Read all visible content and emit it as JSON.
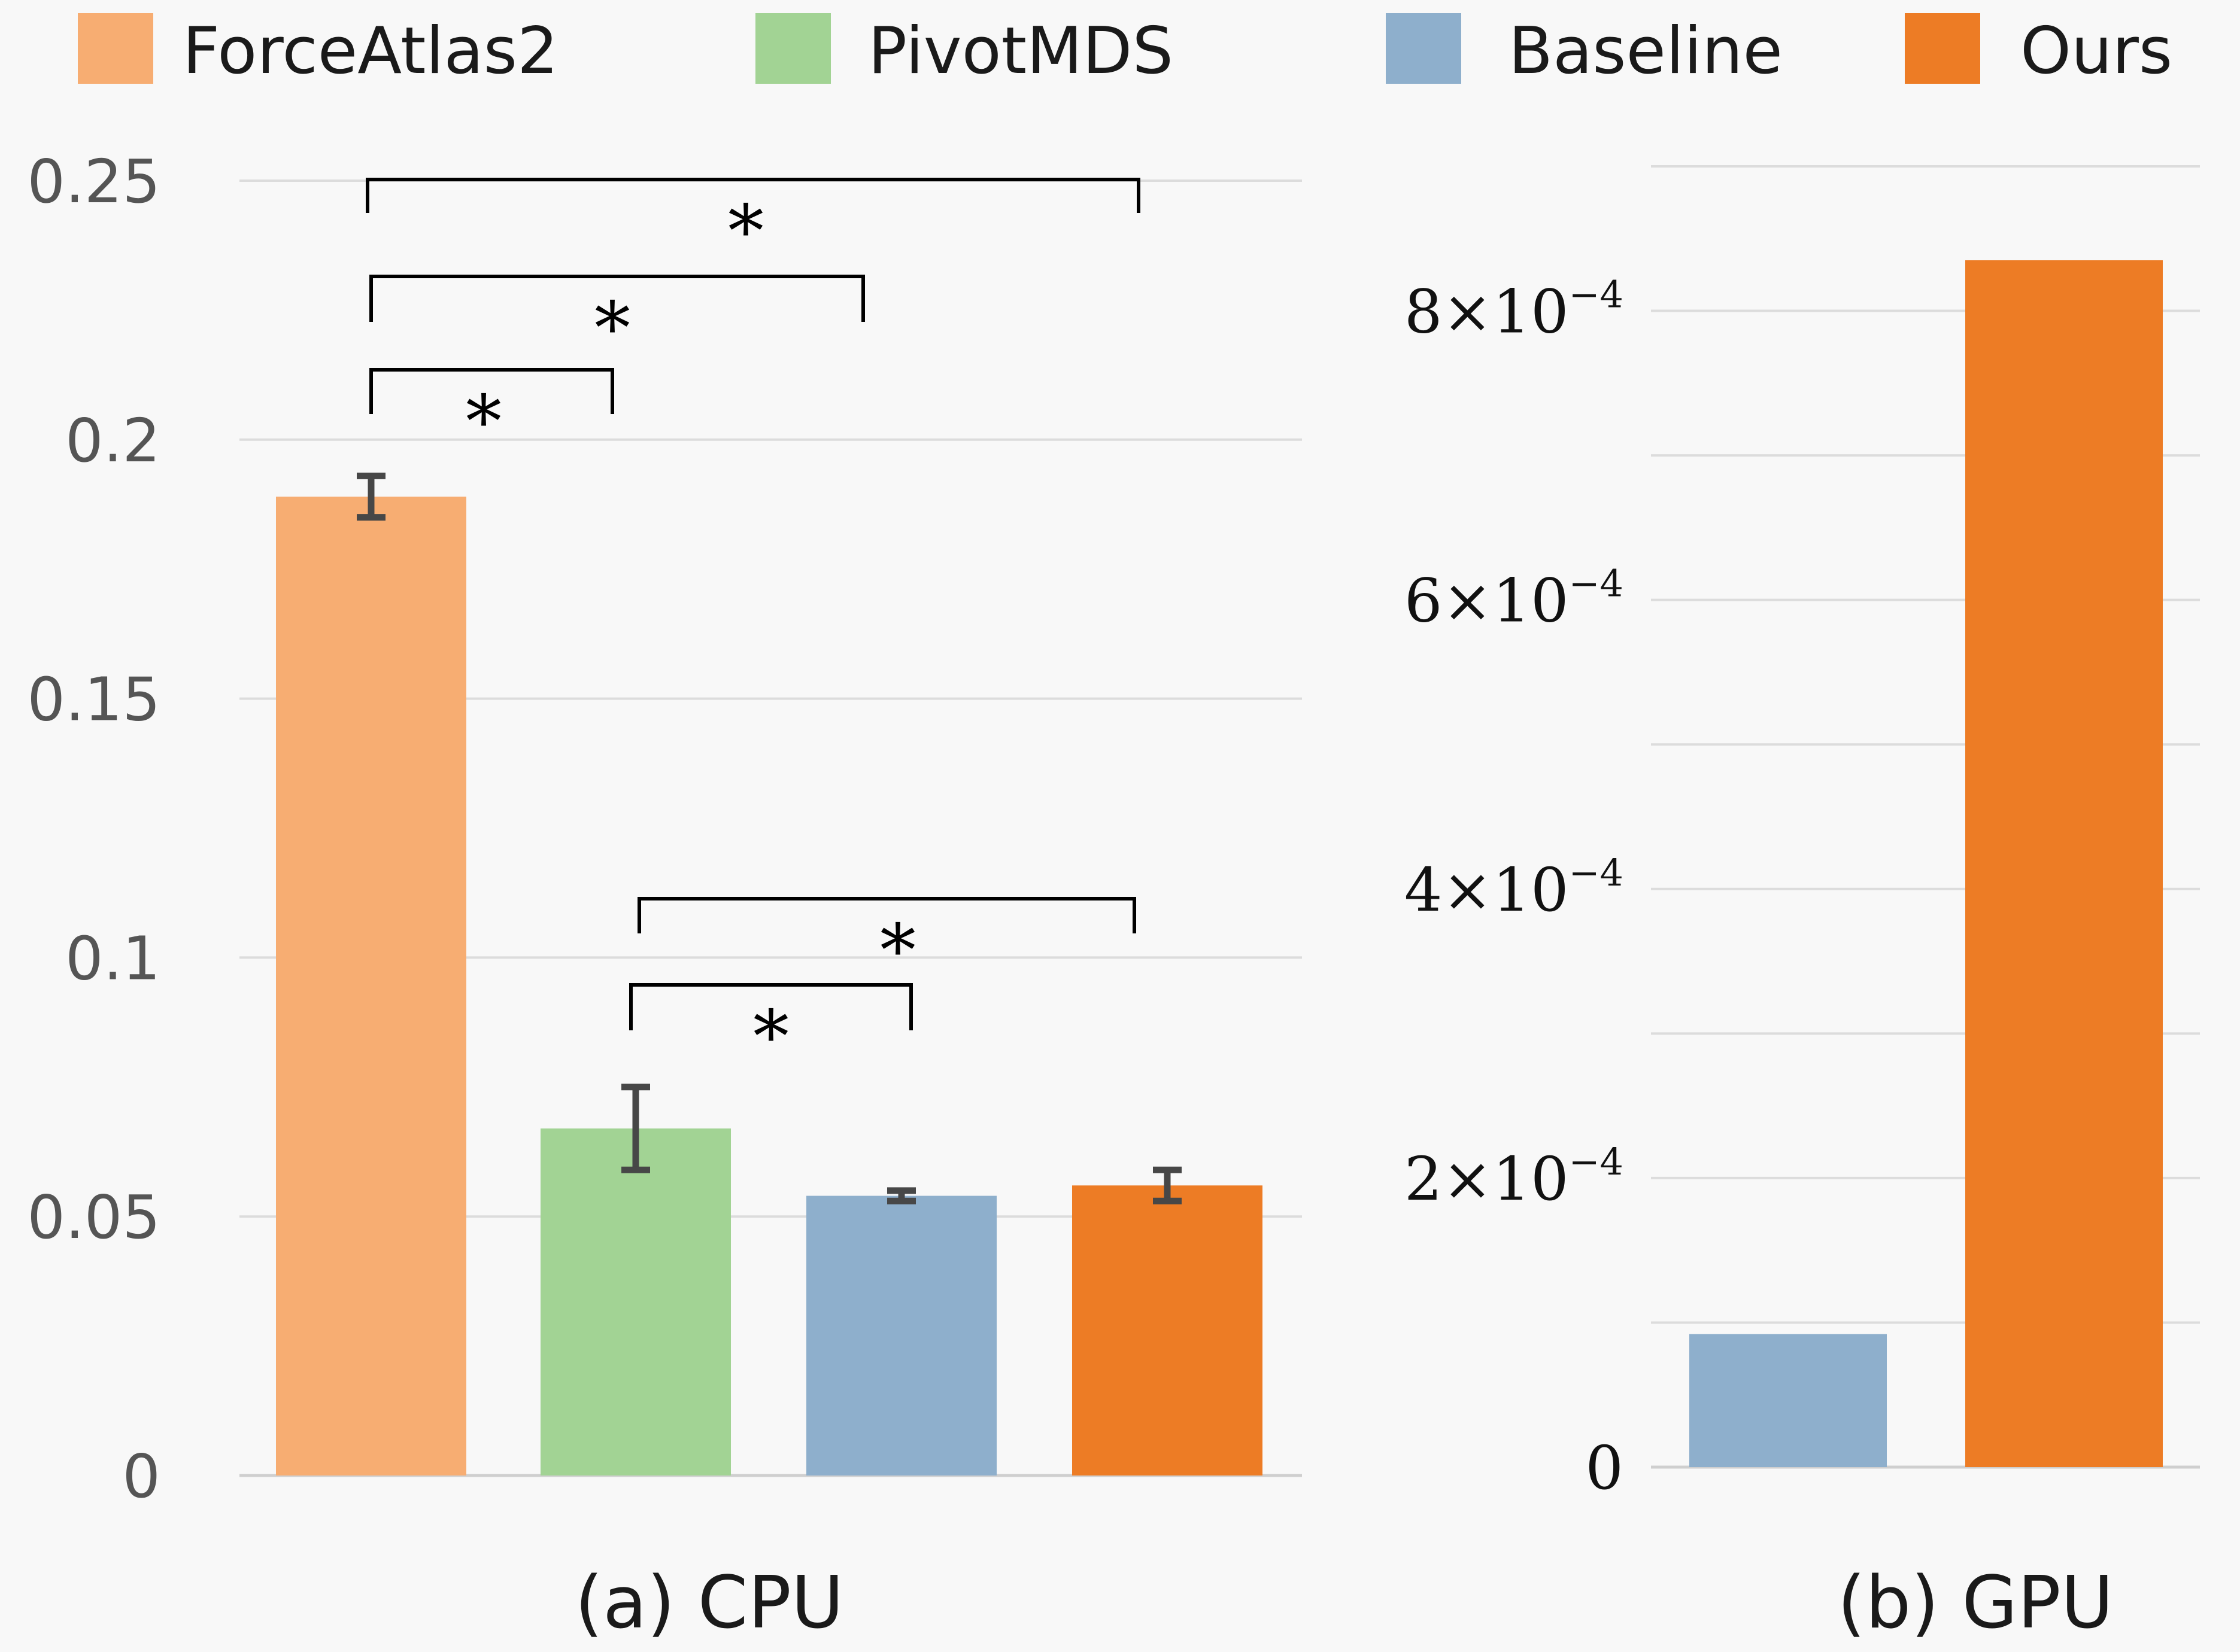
{
  "legend": [
    {
      "label": "ForceAtlas2",
      "color": "#f7ad72"
    },
    {
      "label": "PivotMDS",
      "color": "#a2d394"
    },
    {
      "label": "Baseline",
      "color": "#8eafcc"
    },
    {
      "label": "Ours",
      "color": "#ed7c25"
    }
  ],
  "chart_data": [
    {
      "type": "bar",
      "title": "(a) CPU",
      "categories": [
        "ForceAtlas2",
        "PivotMDS",
        "Baseline",
        "Ours"
      ],
      "values": [
        0.189,
        0.067,
        0.054,
        0.056
      ],
      "error": [
        0.004,
        0.008,
        0.001,
        0.003
      ],
      "colors": [
        "#f7ad72",
        "#a2d394",
        "#8eafcc",
        "#ed7c25"
      ],
      "ylim": [
        0,
        0.25
      ],
      "yticks": [
        0,
        0.05,
        0.1,
        0.15,
        0.2,
        0.25
      ],
      "ytick_labels": [
        "0",
        "0.05",
        "0.1",
        "0.15",
        "0.2",
        "0.25"
      ],
      "grid": true,
      "significance": [
        {
          "from": "ForceAtlas2",
          "to": "PivotMDS",
          "label": "*"
        },
        {
          "from": "ForceAtlas2",
          "to": "Baseline",
          "label": "*"
        },
        {
          "from": "ForceAtlas2",
          "to": "Ours",
          "label": "*"
        },
        {
          "from": "PivotMDS",
          "to": "Baseline",
          "label": "*"
        },
        {
          "from": "PivotMDS",
          "to": "Ours",
          "label": "*"
        }
      ]
    },
    {
      "type": "bar",
      "title": "(b) GPU",
      "categories": [
        "Baseline",
        "Ours"
      ],
      "values": [
        9.2e-05,
        0.000835
      ],
      "colors": [
        "#8eafcc",
        "#ed7c25"
      ],
      "ylim": [
        0,
        0.0009
      ],
      "grid": true,
      "gridlines": [
        0,
        0.0001,
        0.0002,
        0.0003,
        0.0004,
        0.0005,
        0.0006,
        0.0007,
        0.0008,
        0.0009
      ],
      "yticks": [
        0,
        0.0002,
        0.0004,
        0.0006,
        0.0008
      ],
      "ytick_labels": [
        {
          "base": "0",
          "exp": ""
        },
        {
          "base": "2×10",
          "exp": "−4"
        },
        {
          "base": "4×10",
          "exp": "−4"
        },
        {
          "base": "6×10",
          "exp": "−4"
        },
        {
          "base": "8×10",
          "exp": "−4"
        }
      ]
    }
  ]
}
